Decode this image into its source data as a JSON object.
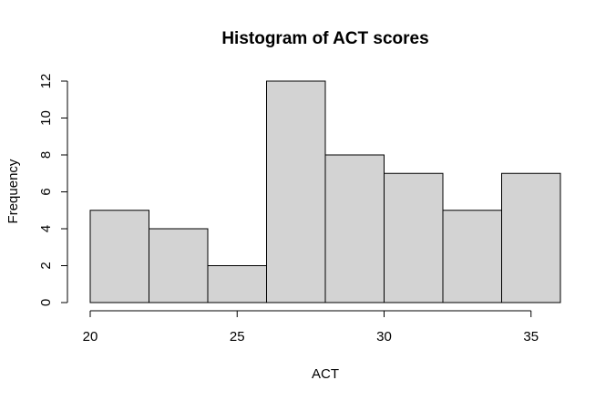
{
  "chart_data": {
    "type": "bar",
    "title": "Histogram of ACT scores",
    "xlabel": "ACT",
    "ylabel": "Frequency",
    "bins": [
      {
        "x0": 20,
        "x1": 22,
        "count": 5
      },
      {
        "x0": 22,
        "x1": 24,
        "count": 4
      },
      {
        "x0": 24,
        "x1": 26,
        "count": 2
      },
      {
        "x0": 26,
        "x1": 28,
        "count": 12
      },
      {
        "x0": 28,
        "x1": 30,
        "count": 8
      },
      {
        "x0": 30,
        "x1": 32,
        "count": 7
      },
      {
        "x0": 32,
        "x1": 34,
        "count": 5
      },
      {
        "x0": 34,
        "x1": 36,
        "count": 7
      }
    ],
    "xlim": [
      20,
      36
    ],
    "ylim": [
      0,
      12
    ],
    "x_ticks": [
      20,
      25,
      30,
      35
    ],
    "y_ticks": [
      0,
      2,
      4,
      6,
      8,
      10,
      12
    ],
    "bar_color": "#d3d3d3",
    "grid": false
  }
}
